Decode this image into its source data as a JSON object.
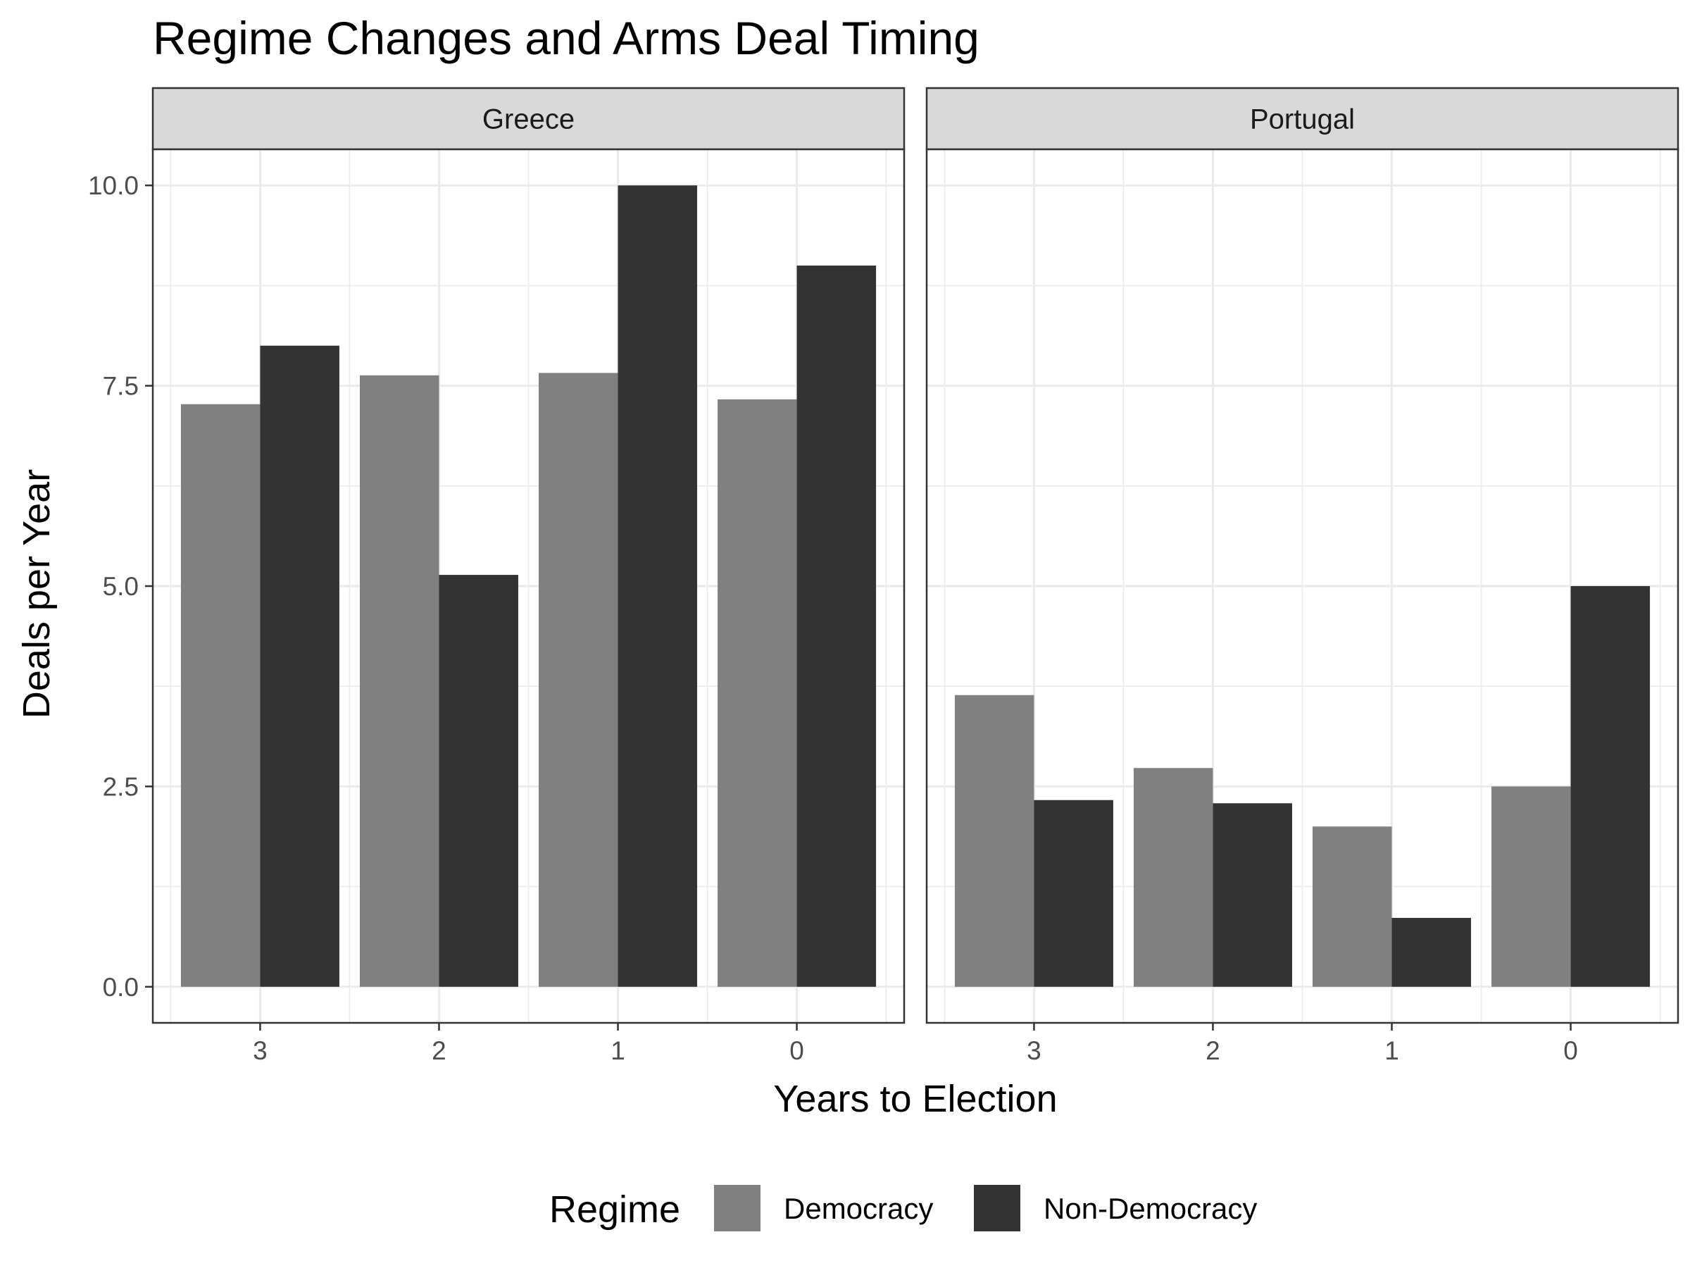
{
  "chart_data": {
    "type": "bar",
    "title": "Regime Changes and Arms Deal Timing",
    "xlabel": "Years to Election",
    "ylabel": "Deals per Year",
    "ylim": [
      -0.45,
      10.45
    ],
    "y_ticks": [
      "0.0",
      "2.5",
      "5.0",
      "7.5",
      "10.0"
    ],
    "y_tick_values": [
      0,
      2.5,
      5,
      7.5,
      10
    ],
    "categories": [
      "3",
      "2",
      "1",
      "0"
    ],
    "grid": true,
    "legend": {
      "title": "Regime",
      "position": "bottom",
      "entries": [
        "Democracy",
        "Non-Democracy"
      ]
    },
    "colors": {
      "Democracy": "#808080",
      "Non-Democracy": "#333333"
    },
    "panels": [
      {
        "facet": "Greece",
        "series": [
          {
            "name": "Democracy",
            "values": [
              7.27,
              7.63,
              7.66,
              7.33
            ]
          },
          {
            "name": "Non-Democracy",
            "values": [
              8.0,
              5.14,
              10.0,
              9.0
            ]
          }
        ]
      },
      {
        "facet": "Portugal",
        "series": [
          {
            "name": "Democracy",
            "values": [
              3.64,
              2.73,
              2.0,
              2.5
            ]
          },
          {
            "name": "Non-Democracy",
            "values": [
              2.33,
              2.29,
              0.86,
              5.0
            ]
          }
        ]
      }
    ]
  }
}
